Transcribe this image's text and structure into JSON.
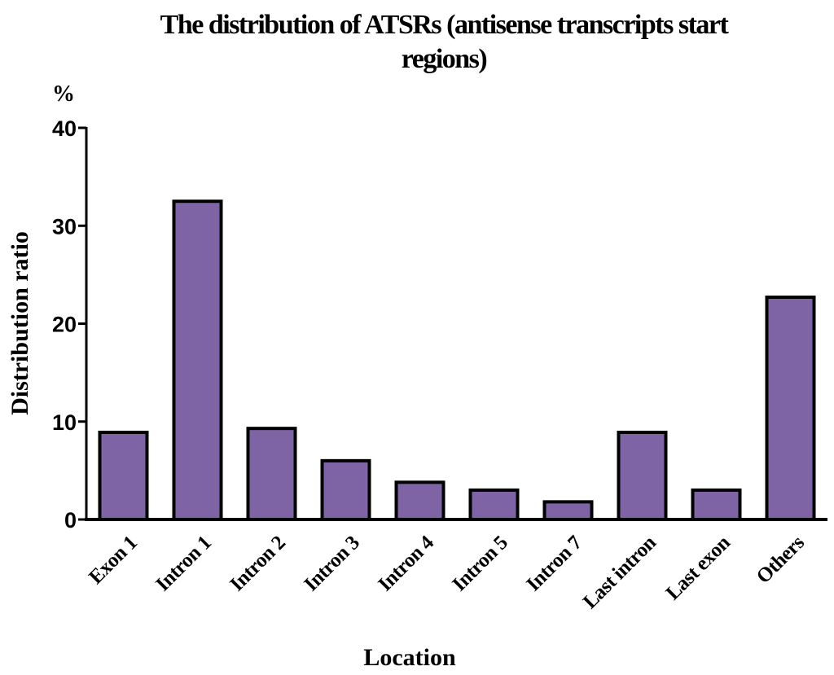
{
  "chart_data": {
    "type": "bar",
    "title_line1": "The distribution of ATSRs (antisense transcripts start",
    "title_line2": "regions)",
    "unit_label": "%",
    "xlabel": "Location",
    "ylabel": "Distribution ratio",
    "categories": [
      "Exon 1",
      "Intron 1",
      "Intron 2",
      "Intron 3",
      "Intron 4",
      "Intron 5",
      "Intron 7",
      "Last intron",
      "Last exon",
      "Others"
    ],
    "values": [
      8.9,
      32.5,
      9.3,
      6.0,
      3.8,
      3.0,
      1.8,
      8.9,
      3.0,
      22.7
    ],
    "ylim": [
      0,
      40
    ],
    "yticks": [
      "0",
      "10",
      "20",
      "30",
      "40"
    ],
    "grid": false,
    "bar_color": "#7f64a5"
  }
}
